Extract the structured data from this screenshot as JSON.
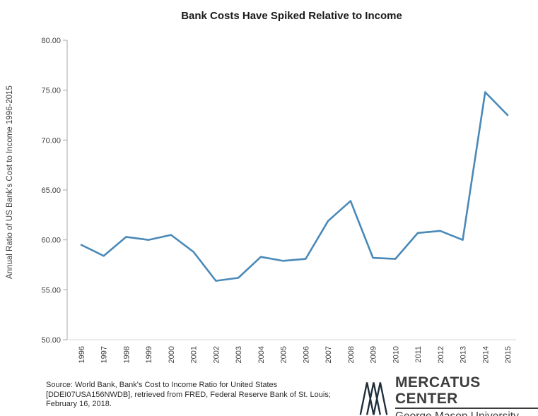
{
  "page": {
    "background": "#ffffff"
  },
  "chart_data": {
    "type": "line",
    "title": "Bank Costs Have Spiked Relative to Income",
    "ylabel": "Annual Ratio of US Bank's Cost to Income 1996-2015",
    "xlabel": "",
    "categories": [
      "1996",
      "1997",
      "1998",
      "1999",
      "2000",
      "2001",
      "2002",
      "2003",
      "2004",
      "2005",
      "2006",
      "2007",
      "2008",
      "2009",
      "2010",
      "2011",
      "2012",
      "2013",
      "2014",
      "2015"
    ],
    "values": [
      59.5,
      58.4,
      60.3,
      60.0,
      60.5,
      58.8,
      55.9,
      56.2,
      58.3,
      57.9,
      58.1,
      61.9,
      63.9,
      58.2,
      58.1,
      60.7,
      60.9,
      60.0,
      74.8,
      72.5
    ],
    "ylim": [
      50,
      80
    ],
    "ytick_step": 5,
    "ytick_labels": [
      "50.00",
      "55.00",
      "60.00",
      "65.00",
      "70.00",
      "75.00",
      "80.00"
    ],
    "grid": false,
    "legend": false,
    "legend_position": "none",
    "line_color": "#4A89B8",
    "axis_color": "#A6A6A6",
    "tick_label_color": "#404040"
  },
  "footer": {
    "source_lines": [
      "Source: World Bank, Bank's Cost to Income Ratio for United States",
      "[DDEI07USA156NWDB], retrieved from FRED, Federal Reserve Bank of St. Louis;",
      "February 16, 2018."
    ],
    "logo": {
      "name": "MERCATUS CENTER",
      "subtitle": "George Mason University",
      "mark_color": "#1d2d3a",
      "text_color": "#3d3d3d"
    }
  }
}
